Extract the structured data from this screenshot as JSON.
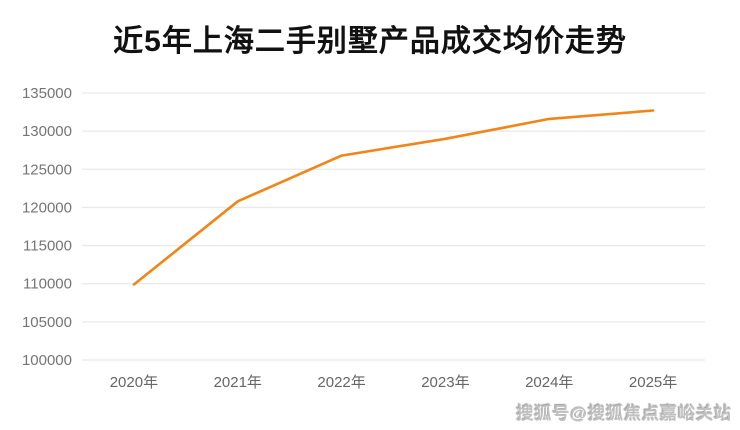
{
  "page": {
    "background": "#ffffff"
  },
  "title": "近5年上海二手别墅产品成交均价走势",
  "watermark": "搜狐号@搜狐焦点嘉峪关站",
  "chart_data": {
    "type": "line",
    "title": "近5年上海二手别墅产品成交均价走势",
    "categories": [
      "2020年",
      "2021年",
      "2022年",
      "2023年",
      "2024年",
      "2025年"
    ],
    "values": [
      109900,
      120800,
      126800,
      129000,
      131600,
      132700
    ],
    "xlabel": "",
    "ylabel": "",
    "ylim": [
      100000,
      135000
    ],
    "yticks": [
      100000,
      105000,
      110000,
      115000,
      120000,
      125000,
      130000,
      135000
    ],
    "grid": true,
    "legend_position": "none",
    "line_color": "#f28517",
    "grid_color": "#e9e9e9",
    "axis_label_color": "#757575",
    "x_label_color": "#666666"
  }
}
